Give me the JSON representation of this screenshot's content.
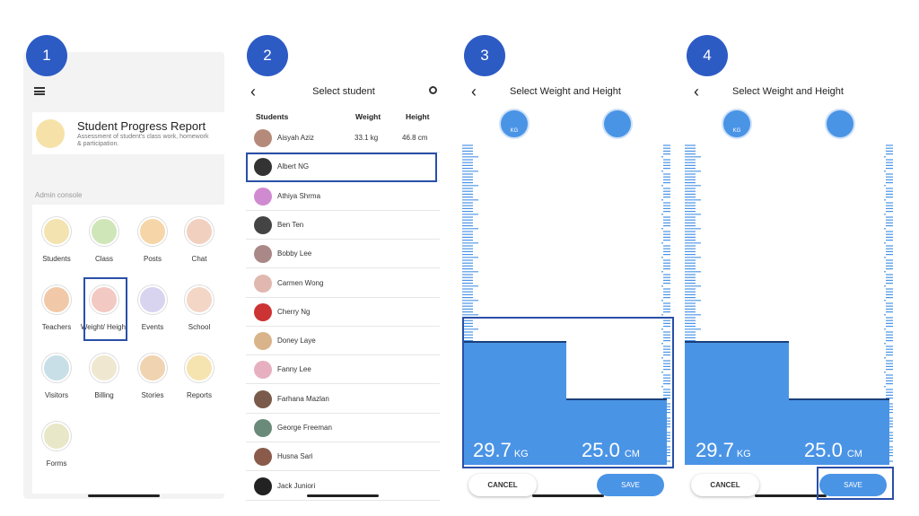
{
  "steps": [
    "1",
    "2",
    "3",
    "4"
  ],
  "screen1": {
    "title": "Student Progress Report",
    "subtitle": "Assessment of student's class work, homework & participation.",
    "section": "Admin console",
    "tiles": [
      "Students",
      "Class",
      "Posts",
      "Chat",
      "Teachers",
      "Weight/ Height",
      "Events",
      "School",
      "Visitors",
      "Billing",
      "Stories",
      "Reports",
      "Forms"
    ]
  },
  "screen2": {
    "title": "Select student",
    "columns": [
      "Students",
      "Weight",
      "Height"
    ],
    "rows": [
      {
        "name": "Aisyah Aziz",
        "weight": "33.1 kg",
        "height": "46.8 cm"
      },
      {
        "name": "Albert NG"
      },
      {
        "name": "Athiya Shrma"
      },
      {
        "name": "Ben Ten"
      },
      {
        "name": "Bobby Lee"
      },
      {
        "name": "Carmen Wong"
      },
      {
        "name": "Cherry Ng"
      },
      {
        "name": "Doney Laye"
      },
      {
        "name": "Fanny Lee"
      },
      {
        "name": "Farhana Mazlan"
      },
      {
        "name": "George Freeman"
      },
      {
        "name": "Husna Sari"
      },
      {
        "name": "Jack Juniori"
      }
    ]
  },
  "screen3": {
    "title": "Select Weight and Height",
    "icon_label": "KG",
    "weight": "29.7",
    "weight_unit": "KG",
    "height": "25.0",
    "height_unit": "CM",
    "cancel": "CANCEL",
    "save": "SAVE"
  },
  "screen4": {
    "title": "Select Weight and Height",
    "icon_label": "KG",
    "weight": "29.7",
    "weight_unit": "KG",
    "height": "25.0",
    "height_unit": "CM",
    "cancel": "CANCEL",
    "save": "SAVE"
  }
}
